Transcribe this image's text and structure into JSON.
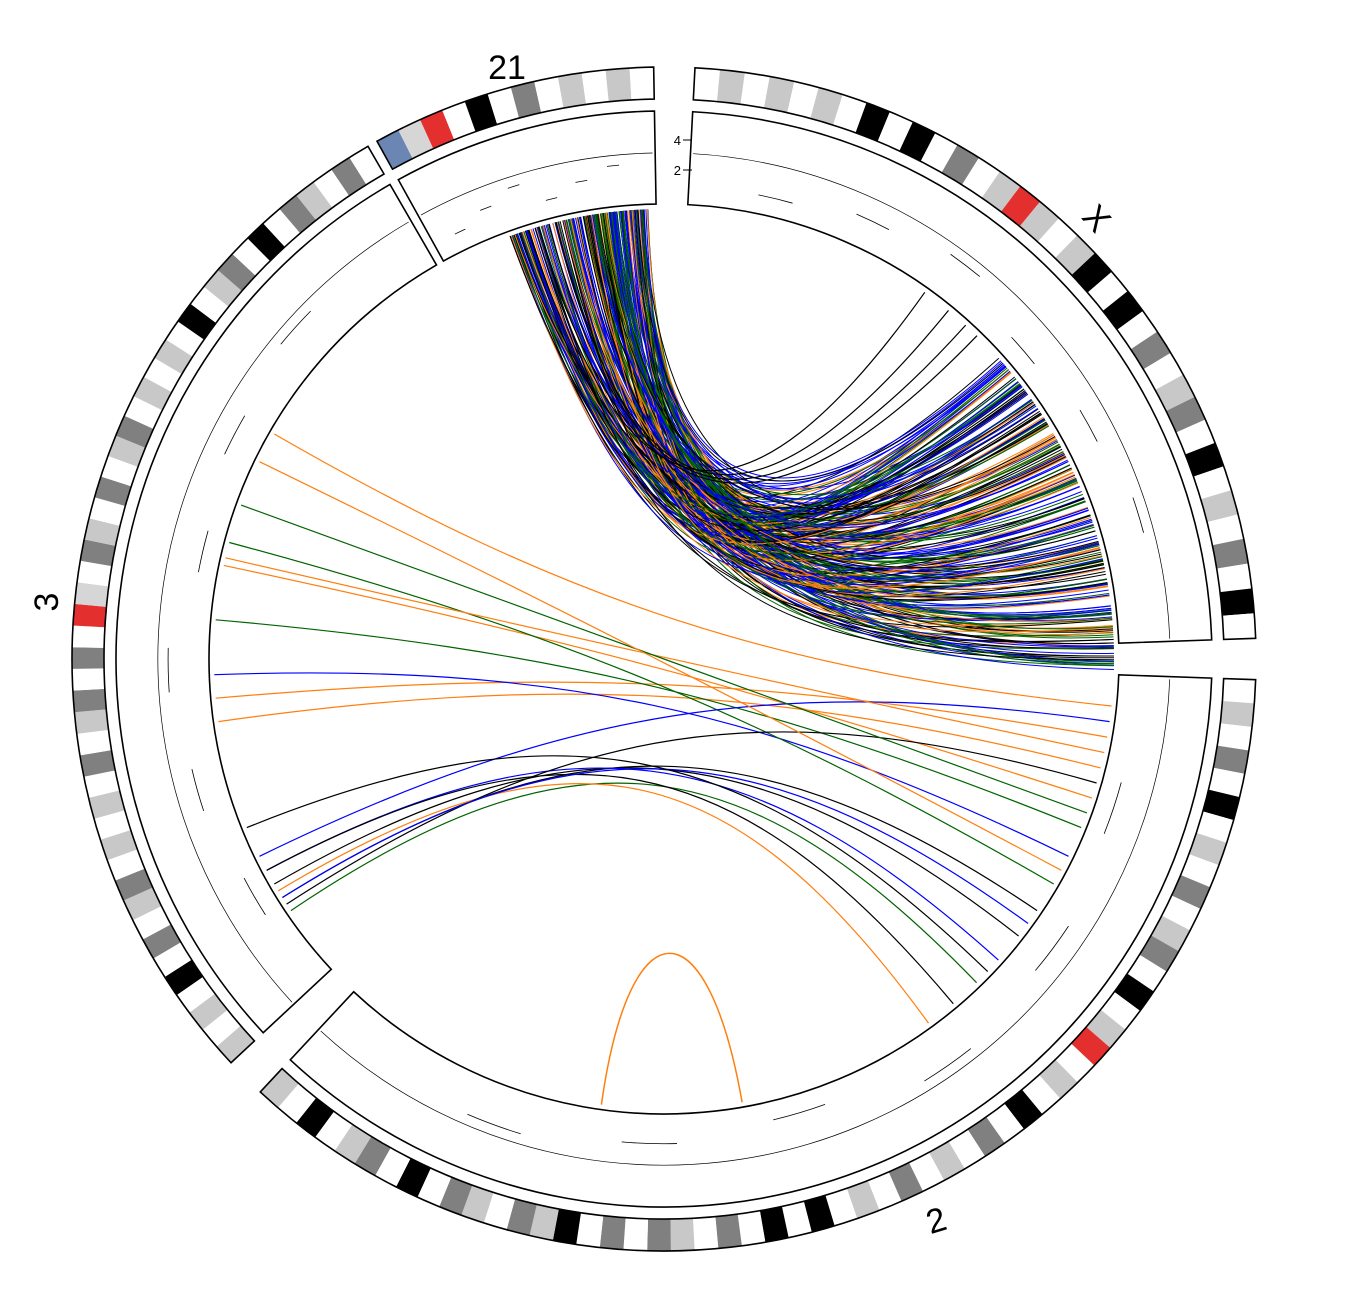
{
  "chromosomes": [
    {
      "label": "21",
      "bands": [
        {
          "color": "#6b86b2"
        },
        {
          "color": "#d6d6d6"
        },
        {
          "color": "#e3302f"
        },
        {
          "color": "#ffffff"
        },
        {
          "color": "#000000"
        },
        {
          "color": "#ffffff"
        },
        {
          "color": "#808080"
        },
        {
          "color": "#ffffff"
        },
        {
          "color": "#c8c8c8"
        },
        {
          "color": "#ffffff"
        },
        {
          "color": "#c8c8c8"
        },
        {
          "color": "#ffffff"
        }
      ]
    },
    {
      "label": "X",
      "bands": [
        {
          "color": "#ffffff"
        },
        {
          "color": "#c8c8c8"
        },
        {
          "color": "#ffffff"
        },
        {
          "color": "#c8c8c8"
        },
        {
          "color": "#ffffff"
        },
        {
          "color": "#c8c8c8"
        },
        {
          "color": "#ffffff"
        },
        {
          "color": "#000000"
        },
        {
          "color": "#ffffff"
        },
        {
          "color": "#000000"
        },
        {
          "color": "#ffffff"
        },
        {
          "color": "#808080"
        },
        {
          "color": "#ffffff"
        },
        {
          "color": "#c8c8c8"
        },
        {
          "color": "#e3302f"
        },
        {
          "color": "#c8c8c8"
        },
        {
          "color": "#ffffff"
        },
        {
          "color": "#c8c8c8"
        },
        {
          "color": "#000000"
        },
        {
          "color": "#ffffff"
        },
        {
          "color": "#000000"
        },
        {
          "color": "#ffffff"
        },
        {
          "color": "#808080"
        },
        {
          "color": "#ffffff"
        },
        {
          "color": "#c8c8c8"
        },
        {
          "color": "#808080"
        },
        {
          "color": "#ffffff"
        },
        {
          "color": "#000000"
        },
        {
          "color": "#ffffff"
        },
        {
          "color": "#c8c8c8"
        },
        {
          "color": "#ffffff"
        },
        {
          "color": "#808080"
        },
        {
          "color": "#ffffff"
        },
        {
          "color": "#000000"
        },
        {
          "color": "#ffffff"
        }
      ]
    },
    {
      "label": "2",
      "bands": [
        {
          "color": "#ffffff"
        },
        {
          "color": "#c8c8c8"
        },
        {
          "color": "#ffffff"
        },
        {
          "color": "#808080"
        },
        {
          "color": "#ffffff"
        },
        {
          "color": "#000000"
        },
        {
          "color": "#ffffff"
        },
        {
          "color": "#c8c8c8"
        },
        {
          "color": "#ffffff"
        },
        {
          "color": "#808080"
        },
        {
          "color": "#ffffff"
        },
        {
          "color": "#c8c8c8"
        },
        {
          "color": "#808080"
        },
        {
          "color": "#ffffff"
        },
        {
          "color": "#000000"
        },
        {
          "color": "#ffffff"
        },
        {
          "color": "#c8c8c8"
        },
        {
          "color": "#e3302f"
        },
        {
          "color": "#ffffff"
        },
        {
          "color": "#c8c8c8"
        },
        {
          "color": "#ffffff"
        },
        {
          "color": "#000000"
        },
        {
          "color": "#ffffff"
        },
        {
          "color": "#808080"
        },
        {
          "color": "#ffffff"
        },
        {
          "color": "#c8c8c8"
        },
        {
          "color": "#ffffff"
        },
        {
          "color": "#808080"
        },
        {
          "color": "#ffffff"
        },
        {
          "color": "#c8c8c8"
        },
        {
          "color": "#ffffff"
        },
        {
          "color": "#000000"
        },
        {
          "color": "#ffffff"
        },
        {
          "color": "#000000"
        },
        {
          "color": "#ffffff"
        },
        {
          "color": "#808080"
        },
        {
          "color": "#ffffff"
        },
        {
          "color": "#c8c8c8"
        },
        {
          "color": "#808080"
        },
        {
          "color": "#ffffff"
        },
        {
          "color": "#808080"
        },
        {
          "color": "#ffffff"
        },
        {
          "color": "#000000"
        },
        {
          "color": "#c8c8c8"
        },
        {
          "color": "#808080"
        },
        {
          "color": "#ffffff"
        },
        {
          "color": "#c8c8c8"
        },
        {
          "color": "#808080"
        },
        {
          "color": "#ffffff"
        },
        {
          "color": "#000000"
        },
        {
          "color": "#ffffff"
        },
        {
          "color": "#808080"
        },
        {
          "color": "#c8c8c8"
        },
        {
          "color": "#ffffff"
        },
        {
          "color": "#000000"
        },
        {
          "color": "#ffffff"
        },
        {
          "color": "#c8c8c8"
        }
      ]
    },
    {
      "label": "3",
      "bands": [
        {
          "color": "#c8c8c8"
        },
        {
          "color": "#ffffff"
        },
        {
          "color": "#c8c8c8"
        },
        {
          "color": "#ffffff"
        },
        {
          "color": "#000000"
        },
        {
          "color": "#ffffff"
        },
        {
          "color": "#808080"
        },
        {
          "color": "#ffffff"
        },
        {
          "color": "#c8c8c8"
        },
        {
          "color": "#808080"
        },
        {
          "color": "#ffffff"
        },
        {
          "color": "#c8c8c8"
        },
        {
          "color": "#ffffff"
        },
        {
          "color": "#c8c8c8"
        },
        {
          "color": "#ffffff"
        },
        {
          "color": "#808080"
        },
        {
          "color": "#ffffff"
        },
        {
          "color": "#c8c8c8"
        },
        {
          "color": "#808080"
        },
        {
          "color": "#ffffff"
        },
        {
          "color": "#808080"
        },
        {
          "color": "#ffffff"
        },
        {
          "color": "#e3302f"
        },
        {
          "color": "#d6d6d6"
        },
        {
          "color": "#ffffff"
        },
        {
          "color": "#808080"
        },
        {
          "color": "#c8c8c8"
        },
        {
          "color": "#ffffff"
        },
        {
          "color": "#808080"
        },
        {
          "color": "#ffffff"
        },
        {
          "color": "#c8c8c8"
        },
        {
          "color": "#808080"
        },
        {
          "color": "#ffffff"
        },
        {
          "color": "#c8c8c8"
        },
        {
          "color": "#ffffff"
        },
        {
          "color": "#c8c8c8"
        },
        {
          "color": "#ffffff"
        },
        {
          "color": "#000000"
        },
        {
          "color": "#ffffff"
        },
        {
          "color": "#c8c8c8"
        },
        {
          "color": "#808080"
        },
        {
          "color": "#ffffff"
        },
        {
          "color": "#000000"
        },
        {
          "color": "#ffffff"
        },
        {
          "color": "#808080"
        },
        {
          "color": "#c8c8c8"
        },
        {
          "color": "#ffffff"
        },
        {
          "color": "#808080"
        },
        {
          "color": "#ffffff"
        }
      ]
    }
  ],
  "axis_ticks": [
    "4",
    "2"
  ],
  "link_colors": [
    "#000000",
    "#ff7f0e",
    "#0000ff",
    "#006400"
  ]
}
